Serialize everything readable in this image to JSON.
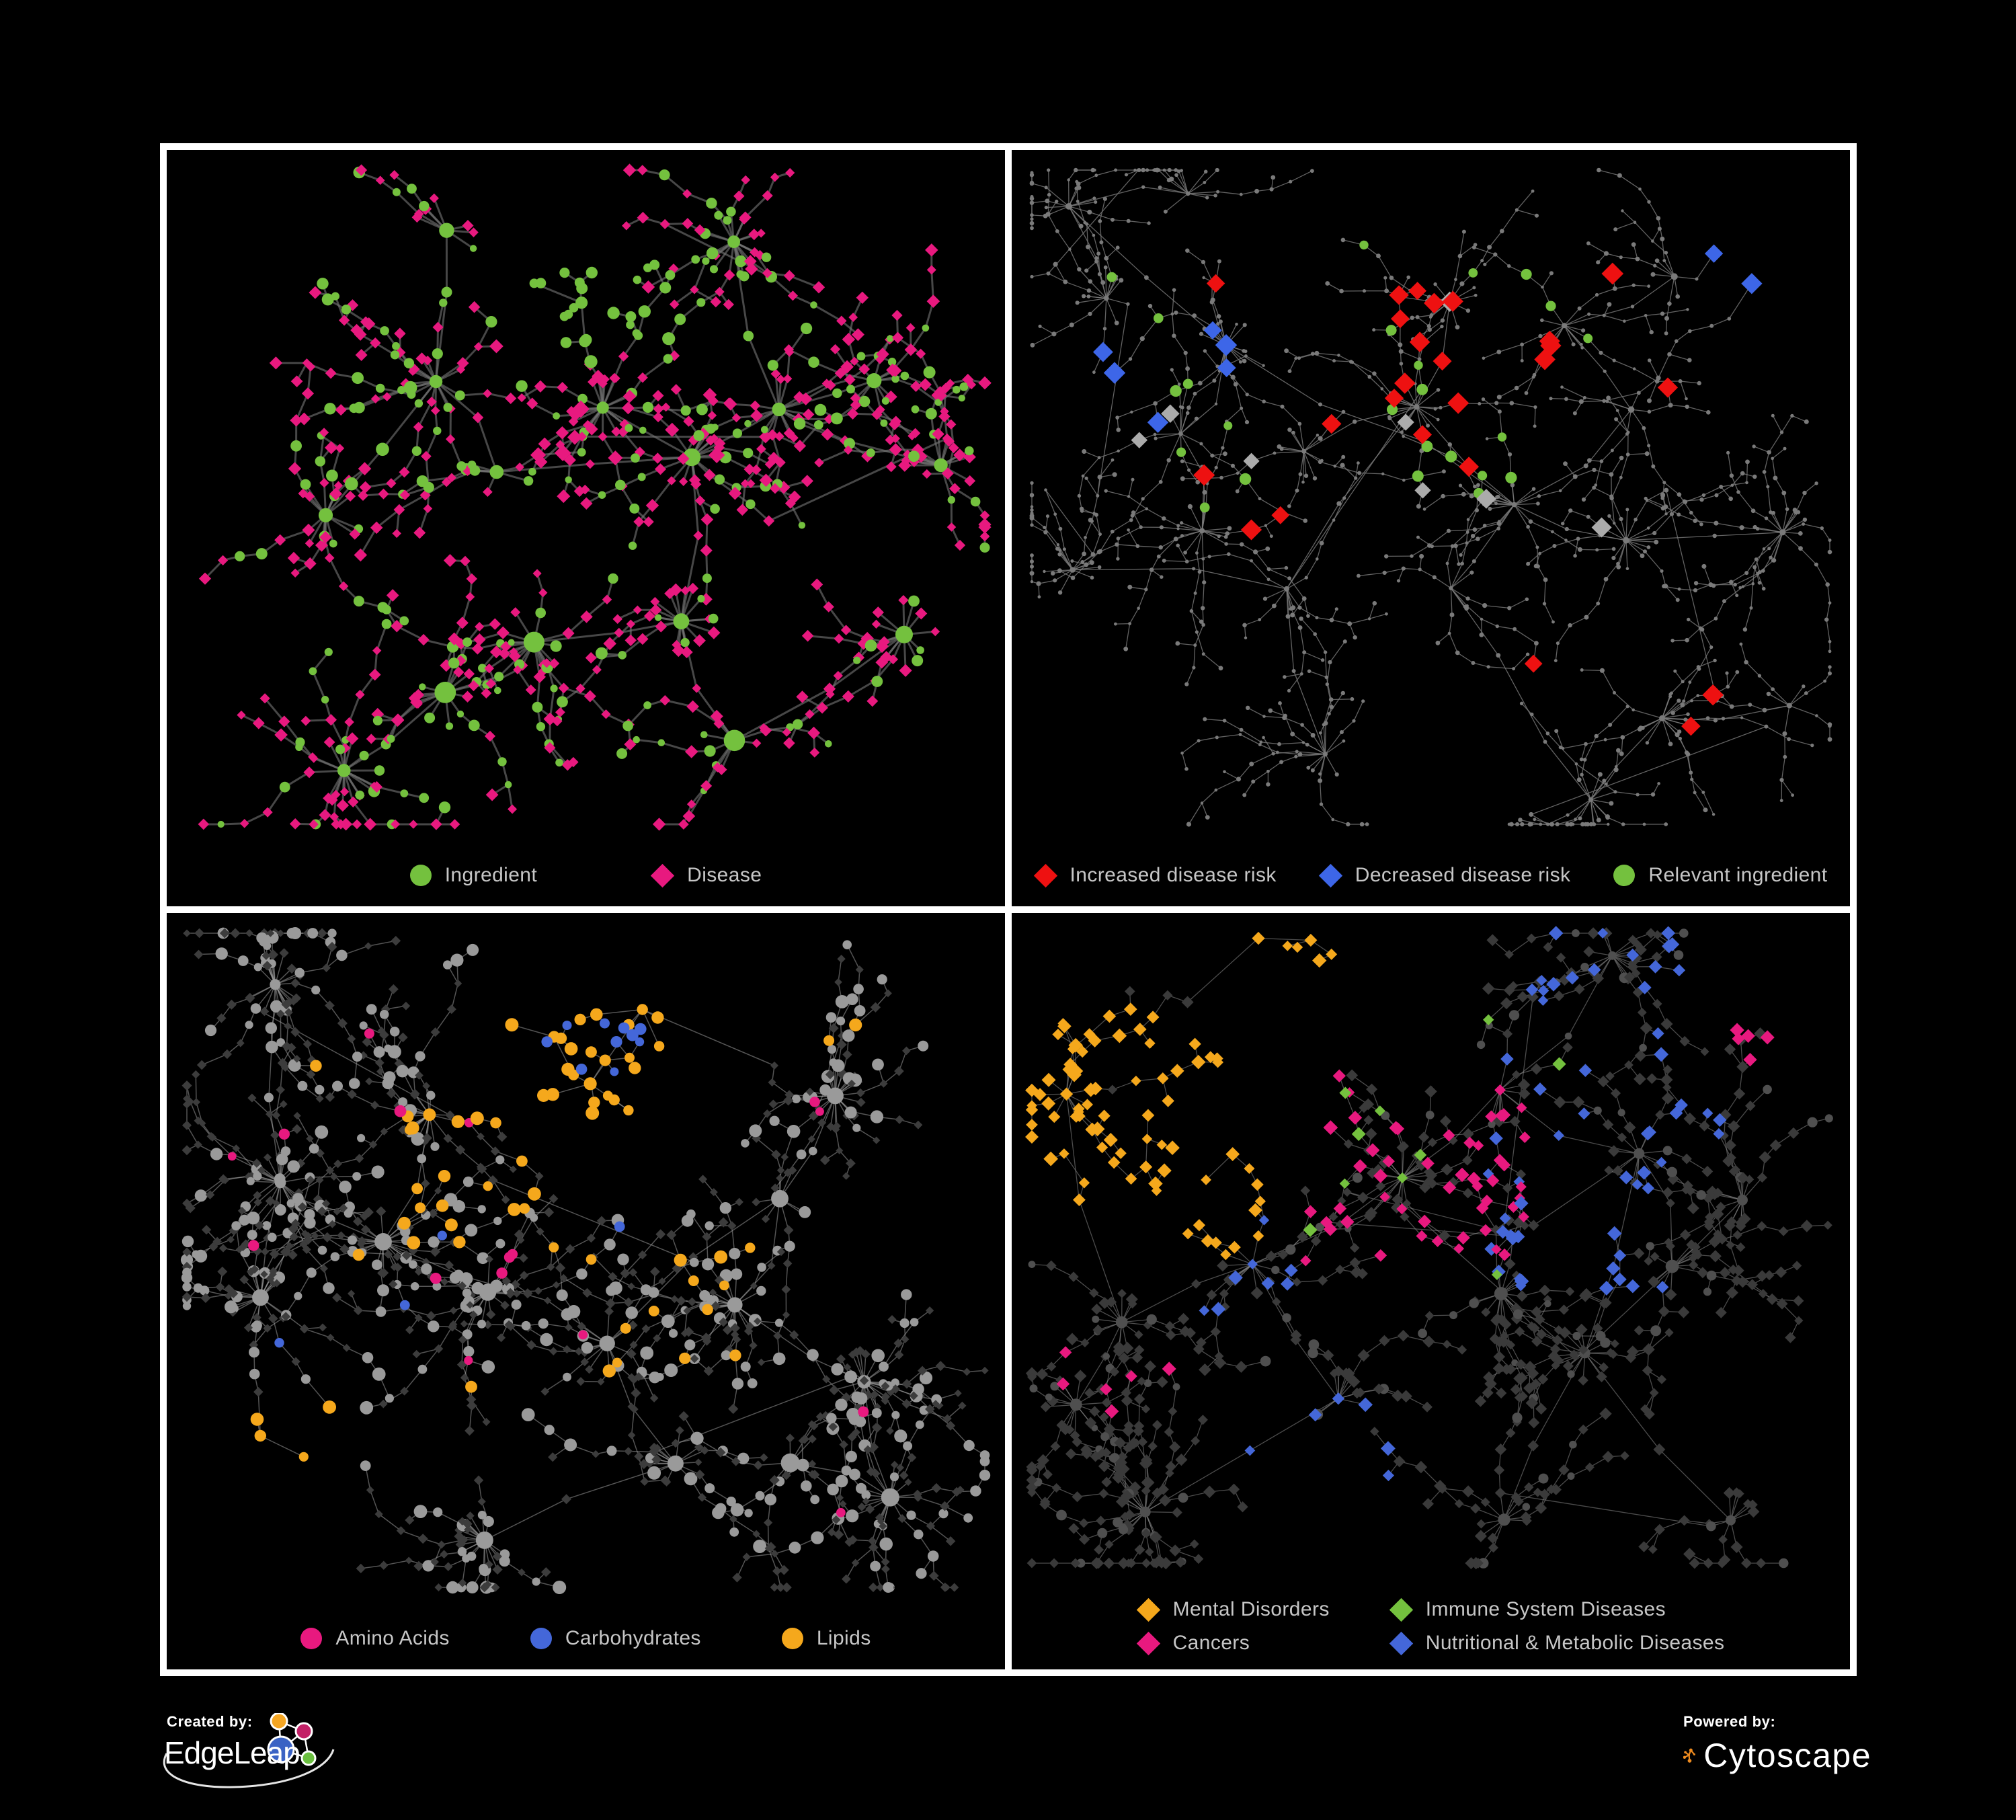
{
  "figure": {
    "background": "#000000",
    "frame_color": "#ffffff",
    "legend_text_color": "#c6c6c6"
  },
  "panels": [
    {
      "name": "ingredient-disease-network",
      "legend": [
        {
          "label": "Ingredient",
          "shape": "circle",
          "color": "#74c13e"
        },
        {
          "label": "Disease",
          "shape": "diamond",
          "color": "#e8197f"
        }
      ],
      "network": {
        "seed": 20,
        "margin": 30,
        "edge": {
          "color": "#777777",
          "width": 3,
          "opacity": 0.6
        },
        "hubs": {
          "count": 16,
          "shape": "circle",
          "color": "#74c13e",
          "r": [
            9,
            16
          ]
        },
        "leaf": {
          "per_hub": [
            7,
            24
          ],
          "step": [
            30,
            56
          ],
          "types": [
            {
              "shape": "diamond",
              "color": "#e8197f",
              "r": [
                6,
                9
              ],
              "w": 0.72
            },
            {
              "shape": "circle",
              "color": "#74c13e",
              "r": [
                5,
                9
              ],
              "w": 0.28
            }
          ]
        },
        "chains": {
          "prob": 0.45,
          "len": [
            2,
            5
          ]
        },
        "cross_links": 12,
        "highlights": [
          {
            "shape": "circle",
            "color": "#74c13e",
            "r": [
              6,
              10
            ],
            "count": 26,
            "region": [
              0.4,
              0.12,
              0.6,
              0.32
            ]
          },
          {
            "shape": "circle",
            "color": "#74c13e",
            "r": [
              6,
              10
            ],
            "count": 12,
            "region": [
              0.22,
              0.34,
              0.38,
              0.5
            ]
          },
          {
            "shape": "diamond",
            "color": "#e8197f",
            "r": [
              9,
              12
            ],
            "count": 10,
            "region": [
              0.3,
              0.25,
              0.7,
              0.55
            ]
          }
        ]
      }
    },
    {
      "name": "disease-risk-network",
      "legend": [
        {
          "label": "Increased disease risk",
          "shape": "diamond",
          "color": "#ee1111"
        },
        {
          "label": "Decreased disease risk",
          "shape": "diamond",
          "color": "#3d66e8"
        },
        {
          "label": "Relevant ingredient",
          "shape": "circle",
          "color": "#74c13e"
        }
      ],
      "network": {
        "seed": 7,
        "margin": 30,
        "edge": {
          "color": "#7a7a7a",
          "width": 1.3,
          "opacity": 0.8
        },
        "hubs": {
          "count": 22,
          "shape": "circle",
          "color": "#7a7a7a",
          "r": [
            3,
            5
          ]
        },
        "leaf": {
          "per_hub": [
            6,
            20
          ],
          "step": [
            26,
            46
          ],
          "types": [
            {
              "shape": "circle",
              "color": "#7a7a7a",
              "r": [
                2.2,
                3.6
              ],
              "w": 1
            }
          ]
        },
        "chains": {
          "prob": 0.55,
          "len": [
            2,
            6
          ]
        },
        "cross_links": 16,
        "highlights": [
          {
            "shape": "diamond",
            "color": "#ee1111",
            "r": [
              12,
              15
            ],
            "count": 14,
            "region": [
              0.32,
              0.18,
              0.66,
              0.46
            ]
          },
          {
            "shape": "diamond",
            "color": "#ee1111",
            "r": [
              12,
              15
            ],
            "count": 8,
            "region": [
              0.16,
              0.14,
              0.82,
              0.56
            ]
          },
          {
            "shape": "diamond",
            "color": "#ee1111",
            "r": [
              12,
              15
            ],
            "count": 3,
            "region": [
              0.6,
              0.66,
              0.84,
              0.84
            ]
          },
          {
            "shape": "diamond",
            "color": "#3d66e8",
            "r": [
              12,
              15
            ],
            "count": 6,
            "region": [
              0.1,
              0.24,
              0.27,
              0.44
            ]
          },
          {
            "shape": "diamond",
            "color": "#3d66e8",
            "r": [
              12,
              15
            ],
            "count": 2,
            "region": [
              0.8,
              0.14,
              0.9,
              0.22
            ]
          },
          {
            "shape": "diamond",
            "color": "#ababab",
            "r": [
              11,
              14
            ],
            "count": 8,
            "region": [
              0.08,
              0.18,
              0.76,
              0.58
            ]
          },
          {
            "shape": "circle",
            "color": "#74c13e",
            "r": [
              6.5,
              9
            ],
            "count": 24,
            "region": [
              0.07,
              0.12,
              0.72,
              0.52
            ]
          }
        ]
      }
    },
    {
      "name": "macronutrient-network",
      "legend": [
        {
          "label": "Amino Acids",
          "shape": "circle",
          "color": "#e8197f"
        },
        {
          "label": "Carbohydrates",
          "shape": "circle",
          "color": "#4467d9"
        },
        {
          "label": "Lipids",
          "shape": "circle",
          "color": "#f5a81c"
        }
      ],
      "network": {
        "seed": 33,
        "margin": 30,
        "edge": {
          "color": "#a8a8a8",
          "width": 1.5,
          "opacity": 0.5
        },
        "hubs": {
          "count": 15,
          "shape": "circle",
          "color": "#9a9a9a",
          "r": [
            8,
            14
          ]
        },
        "leaf": {
          "per_hub": [
            8,
            28
          ],
          "step": [
            28,
            50
          ],
          "types": [
            {
              "shape": "diamond",
              "color": "#3c3c3c",
              "r": [
                5,
                7
              ],
              "w": 0.62
            },
            {
              "shape": "circle",
              "color": "#9a9a9a",
              "r": [
                6,
                10
              ],
              "w": 0.38
            }
          ]
        },
        "chains": {
          "prob": 0.5,
          "len": [
            2,
            6
          ]
        },
        "cross_links": 14,
        "highlights": [
          {
            "shape": "circle",
            "color": "#f5a81c",
            "r": [
              7,
              10
            ],
            "count": 26,
            "region": [
              0.36,
              0.1,
              0.64,
              0.3
            ]
          },
          {
            "shape": "circle",
            "color": "#f5a81c",
            "r": [
              7,
              10
            ],
            "count": 20,
            "region": [
              0.28,
              0.28,
              0.56,
              0.5
            ]
          },
          {
            "shape": "circle",
            "color": "#f5a81c",
            "r": [
              7,
              10
            ],
            "count": 8,
            "region": [
              0.58,
              0.48,
              0.74,
              0.64
            ]
          },
          {
            "shape": "circle",
            "color": "#f5a81c",
            "r": [
              7,
              10
            ],
            "count": 4,
            "region": [
              0.06,
              0.66,
              0.22,
              0.82
            ]
          },
          {
            "shape": "circle",
            "color": "#f5a81c",
            "r": [
              7,
              10
            ],
            "count": 10,
            "region": [
              0.1,
              0.08,
              0.9,
              0.85
            ]
          },
          {
            "shape": "circle",
            "color": "#4467d9",
            "r": [
              6,
              9
            ],
            "count": 10,
            "region": [
              0.44,
              0.1,
              0.62,
              0.26
            ]
          },
          {
            "shape": "circle",
            "color": "#4467d9",
            "r": [
              6,
              9
            ],
            "count": 4,
            "region": [
              0.05,
              0.1,
              0.95,
              0.9
            ]
          },
          {
            "shape": "circle",
            "color": "#e8197f",
            "r": [
              6,
              9
            ],
            "count": 16,
            "region": [
              0.04,
              0.08,
              0.92,
              0.88
            ]
          }
        ]
      }
    },
    {
      "name": "disease-category-network",
      "legend": [
        {
          "label": "Mental Disorders",
          "shape": "diamond",
          "color": "#f5a81c"
        },
        {
          "label": "Immune System Diseases",
          "shape": "diamond",
          "color": "#74c13e"
        },
        {
          "label": "Cancers",
          "shape": "diamond",
          "color": "#e8197f"
        },
        {
          "label": "Nutritional & Metabolic Diseases",
          "shape": "diamond",
          "color": "#4467d9"
        }
      ],
      "network": {
        "seed": 91,
        "margin": 30,
        "edge": {
          "color": "#8a8a8a",
          "width": 1.3,
          "opacity": 0.55
        },
        "hubs": {
          "count": 16,
          "shape": "circle",
          "color": "#4f4f4f",
          "r": [
            6,
            10
          ]
        },
        "leaf": {
          "per_hub": [
            8,
            26
          ],
          "step": [
            28,
            48
          ],
          "types": [
            {
              "shape": "diamond",
              "color": "#3a3a3a",
              "r": [
                6,
                8.5
              ],
              "w": 0.85
            },
            {
              "shape": "circle",
              "color": "#4f4f4f",
              "r": [
                5,
                8
              ],
              "w": 0.15
            }
          ]
        },
        "chains": {
          "prob": 0.5,
          "len": [
            2,
            6
          ]
        },
        "cross_links": 14,
        "highlights": [
          {
            "shape": "diamond",
            "color": "#f5a81c",
            "r": [
              7,
              10
            ],
            "count": 78,
            "region": [
              0.02,
              0.14,
              0.3,
              0.52
            ]
          },
          {
            "shape": "diamond",
            "color": "#f5a81c",
            "r": [
              7,
              10
            ],
            "count": 6,
            "region": [
              0.28,
              0.02,
              0.46,
              0.12
            ]
          },
          {
            "shape": "diamond",
            "color": "#e8197f",
            "r": [
              7,
              10
            ],
            "count": 50,
            "region": [
              0.34,
              0.22,
              0.64,
              0.52
            ]
          },
          {
            "shape": "diamond",
            "color": "#e8197f",
            "r": [
              7,
              10
            ],
            "count": 6,
            "region": [
              0.04,
              0.6,
              0.2,
              0.78
            ]
          },
          {
            "shape": "diamond",
            "color": "#e8197f",
            "r": [
              7,
              10
            ],
            "count": 5,
            "region": [
              0.84,
              0.12,
              0.95,
              0.26
            ]
          },
          {
            "shape": "diamond",
            "color": "#4467d9",
            "r": [
              7,
              10
            ],
            "count": 28,
            "region": [
              0.56,
              0.32,
              0.78,
              0.56
            ]
          },
          {
            "shape": "diamond",
            "color": "#4467d9",
            "r": [
              7,
              10
            ],
            "count": 28,
            "region": [
              0.58,
              0.02,
              0.95,
              0.34
            ]
          },
          {
            "shape": "diamond",
            "color": "#4467d9",
            "r": [
              7,
              10
            ],
            "count": 8,
            "region": [
              0.14,
              0.44,
              0.34,
              0.62
            ]
          },
          {
            "shape": "diamond",
            "color": "#4467d9",
            "r": [
              7,
              10
            ],
            "count": 6,
            "region": [
              0.28,
              0.72,
              0.5,
              0.9
            ]
          },
          {
            "shape": "diamond",
            "color": "#74c13e",
            "r": [
              7,
              10
            ],
            "count": 10,
            "region": [
              0.28,
              0.1,
              0.72,
              0.6
            ]
          }
        ]
      }
    }
  ],
  "footer": {
    "created_by_label": "Created by:",
    "created_by_brand": "EdgeLeap",
    "powered_by_label": "Powered by:",
    "powered_by_brand": "Cytoscape",
    "edgeleap_colors": {
      "blue": "#3a62c4",
      "orange": "#f5a623",
      "magenta": "#c32167",
      "green": "#6abf3f"
    },
    "cytoscape_orange": "#ef8b1f"
  }
}
